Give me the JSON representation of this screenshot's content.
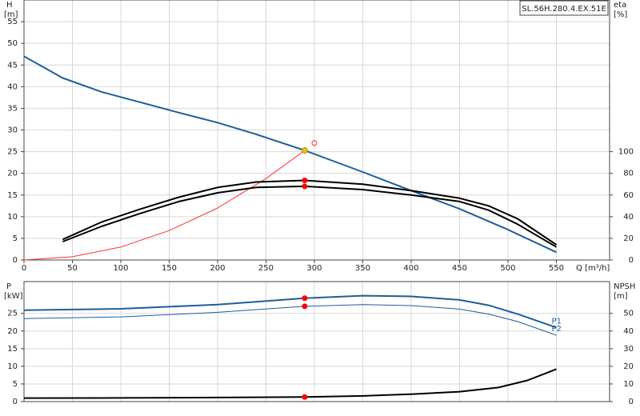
{
  "chart_data": [
    {
      "type": "line",
      "title": "SL.56H.280.4.EX.51E",
      "y_label": "H",
      "y_unit": "[m]",
      "y2_label": "eta",
      "y2_unit": "[%]",
      "x_label": "Q [m³/h]",
      "xlim": [
        0,
        605
      ],
      "xticks": [
        0,
        50,
        100,
        150,
        200,
        250,
        300,
        350,
        400,
        450,
        500,
        550
      ],
      "ylim": [
        0,
        60
      ],
      "yticks": [
        0,
        5,
        10,
        15,
        20,
        25,
        30,
        35,
        40,
        45,
        50,
        55
      ],
      "y2lim": [
        0,
        240
      ],
      "y2ticks": [
        0,
        20,
        40,
        60,
        80,
        100
      ],
      "grid": true,
      "series": [
        {
          "color": "#1f5e9a",
          "style": "thick",
          "x": [
            0,
            40,
            80,
            120,
            160,
            200,
            240,
            290,
            350,
            400,
            450,
            500,
            550
          ],
          "values": [
            47,
            42,
            38.8,
            36.4,
            34,
            31.7,
            29,
            25.3,
            20.3,
            16,
            11.8,
            7,
            1.8
          ]
        },
        {
          "color": "#ff3030",
          "style": "thin",
          "x": [
            0,
            50,
            100,
            150,
            200,
            250,
            290
          ],
          "values": [
            0,
            0.75,
            3,
            6.8,
            12,
            18.8,
            25.3
          ]
        },
        {
          "color": "#000000",
          "style": "thick",
          "axis": "y2",
          "x": [
            40,
            80,
            120,
            160,
            200,
            240,
            290,
            350,
            400,
            450,
            480,
            510,
            550
          ],
          "values": [
            19,
            35,
            47,
            58,
            67,
            72,
            73.5,
            70,
            64,
            57,
            50,
            38,
            14
          ]
        },
        {
          "color": "#000000",
          "style": "thick",
          "axis": "y2",
          "x": [
            40,
            80,
            120,
            160,
            200,
            240,
            290,
            350,
            400,
            450,
            480,
            510,
            550
          ],
          "values": [
            17,
            31,
            43,
            54,
            62,
            67,
            68,
            65,
            60,
            54,
            46,
            33,
            12
          ]
        }
      ],
      "points": [
        {
          "x": 290,
          "y": 25.3,
          "color": "#f2c200"
        },
        {
          "x": 300,
          "y": 27,
          "color": "#ff3030",
          "hollow": true
        },
        {
          "x": 290,
          "y": 73.5,
          "axis": "y2",
          "color": "#ff0000"
        },
        {
          "x": 290,
          "y": 68,
          "axis": "y2",
          "color": "#ff0000"
        }
      ]
    },
    {
      "type": "line",
      "y_label": "P",
      "y_unit": "[kW]",
      "y2_label": "NPSH",
      "y2_unit": "[m]",
      "xlim": [
        0,
        605
      ],
      "ylim": [
        0,
        34
      ],
      "yticks": [
        0,
        5,
        10,
        15,
        20,
        25
      ],
      "y2lim": [
        0,
        68
      ],
      "y2ticks": [
        0,
        10,
        20,
        30,
        40,
        50
      ],
      "grid": true,
      "series": [
        {
          "name": "P1",
          "color": "#1f5e9a",
          "style": "thick",
          "x": [
            0,
            100,
            200,
            290,
            350,
            400,
            450,
            480,
            510,
            550
          ],
          "values": [
            25.9,
            26.3,
            27.5,
            29.3,
            30,
            29.8,
            28.8,
            27.3,
            24.8,
            21
          ]
        },
        {
          "name": "P2",
          "color": "#1f5e9a",
          "style": "thin",
          "x": [
            0,
            100,
            200,
            290,
            350,
            400,
            450,
            480,
            510,
            550
          ],
          "values": [
            23.5,
            24,
            25.3,
            27,
            27.5,
            27.2,
            26.2,
            24.8,
            22.7,
            18.8
          ]
        },
        {
          "color": "#000000",
          "style": "thick",
          "axis": "y2",
          "x": [
            0,
            100,
            200,
            290,
            350,
            400,
            450,
            490,
            520,
            550
          ],
          "values": [
            2,
            2.1,
            2.3,
            2.6,
            3.2,
            4.2,
            5.6,
            8,
            12,
            18.4
          ]
        }
      ],
      "points": [
        {
          "x": 290,
          "y": 29.3,
          "color": "#ff0000"
        },
        {
          "x": 290,
          "y": 27,
          "color": "#ff0000"
        },
        {
          "x": 290,
          "y": 2.6,
          "axis": "y2",
          "color": "#ff0000"
        }
      ]
    }
  ]
}
